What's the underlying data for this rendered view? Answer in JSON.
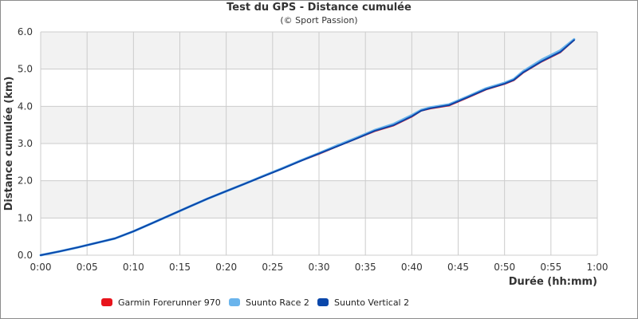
{
  "chart_data": {
    "type": "line",
    "title": "Test du GPS - Distance cumulée",
    "subtitle": "(© Sport Passion)",
    "xlabel": "Durée (hh:mm)",
    "ylabel": "Distance cumulée (km)",
    "xlim": [
      0,
      60
    ],
    "ylim": [
      0,
      6
    ],
    "x_ticks": [
      "0:00",
      "0:05",
      "0:10",
      "0:15",
      "0:20",
      "0:25",
      "0:30",
      "0:35",
      "0:40",
      "0:45",
      "0:50",
      "0:55",
      "1:00"
    ],
    "y_ticks": [
      "0.0",
      "1.0",
      "2.0",
      "3.0",
      "4.0",
      "5.0",
      "6.0"
    ],
    "grid": true,
    "legend_position": "bottom",
    "x_unit": "minutes",
    "x": [
      0,
      2,
      4,
      6,
      8,
      10,
      12,
      14,
      16,
      18,
      20,
      22,
      24,
      26,
      28,
      30,
      32,
      34,
      36,
      38,
      40,
      41,
      42,
      44,
      46,
      48,
      50,
      51,
      52,
      54,
      56,
      57.5
    ],
    "series": [
      {
        "name": "Garmin Forerunner 970",
        "color": "#e8141c",
        "values": [
          0,
          0.1,
          0.21,
          0.33,
          0.45,
          0.64,
          0.86,
          1.08,
          1.3,
          1.52,
          1.72,
          1.92,
          2.12,
          2.32,
          2.53,
          2.72,
          2.93,
          3.13,
          3.33,
          3.48,
          3.72,
          3.88,
          3.94,
          4.02,
          4.23,
          4.45,
          4.6,
          4.7,
          4.9,
          5.2,
          5.45,
          5.78
        ]
      },
      {
        "name": "Suunto Race 2",
        "color": "#6ab4ec",
        "values": [
          0,
          0.1,
          0.21,
          0.33,
          0.45,
          0.64,
          0.86,
          1.08,
          1.3,
          1.52,
          1.72,
          1.92,
          2.13,
          2.33,
          2.54,
          2.74,
          2.95,
          3.15,
          3.36,
          3.52,
          3.76,
          3.9,
          3.97,
          4.05,
          4.26,
          4.48,
          4.63,
          4.73,
          4.94,
          5.25,
          5.5,
          5.8
        ]
      },
      {
        "name": "Suunto Vertical 2",
        "color": "#0a47aa",
        "values": [
          0,
          0.1,
          0.21,
          0.33,
          0.45,
          0.64,
          0.86,
          1.08,
          1.3,
          1.52,
          1.72,
          1.92,
          2.12,
          2.32,
          2.53,
          2.73,
          2.93,
          3.13,
          3.34,
          3.49,
          3.73,
          3.88,
          3.95,
          4.03,
          4.24,
          4.46,
          4.61,
          4.71,
          4.91,
          5.21,
          5.46,
          5.78
        ]
      }
    ]
  }
}
